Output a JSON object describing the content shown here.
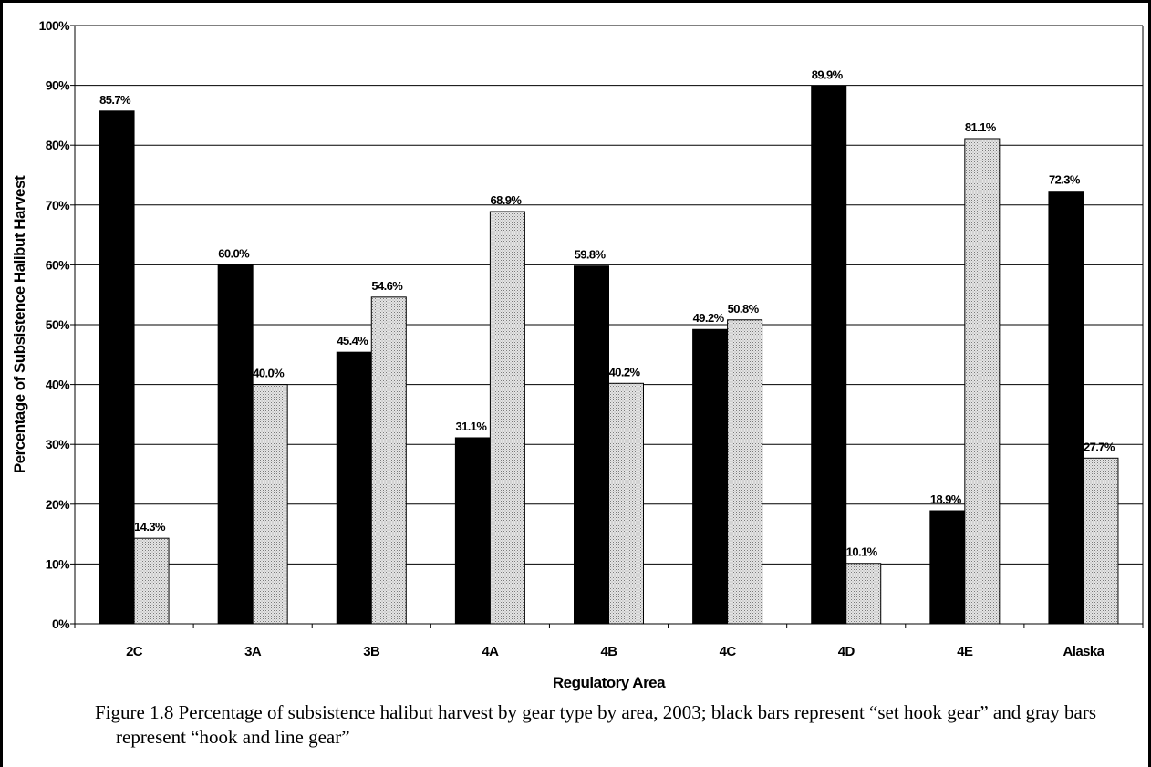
{
  "caption": "Figure 1.8 Percentage of subsistence halibut harvest by gear type by area, 2003; black bars represent “set hook gear” and gray bars represent “hook and line gear”",
  "chart_data": {
    "type": "bar",
    "title": "",
    "xlabel": "Regulatory Area",
    "ylabel": "Percentage of Subsistence Halibut Harvest",
    "ylim": [
      0,
      100
    ],
    "yticks": [
      "0%",
      "10%",
      "20%",
      "30%",
      "40%",
      "50%",
      "60%",
      "70%",
      "80%",
      "90%",
      "100%"
    ],
    "grid": "horizontal",
    "legend": "none",
    "categories": [
      "2C",
      "3A",
      "3B",
      "4A",
      "4B",
      "4C",
      "4D",
      "4E",
      "Alaska"
    ],
    "series": [
      {
        "color": "#000000",
        "values": [
          85.7,
          60.0,
          45.4,
          31.1,
          59.8,
          49.2,
          89.9,
          18.9,
          72.3
        ],
        "labels": [
          "85.7%",
          "60.0%",
          "45.4%",
          "31.1%",
          "59.8%",
          "49.2%",
          "89.9%",
          "18.9%",
          "72.3%"
        ]
      },
      {
        "color": "#c8c8c8",
        "values": [
          14.3,
          40.0,
          54.6,
          68.9,
          40.2,
          50.8,
          10.1,
          81.1,
          27.7
        ],
        "labels": [
          "14.3%",
          "40.0%",
          "54.6%",
          "68.9%",
          "40.2%",
          "50.8%",
          "10.1%",
          "81.1%",
          "27.7%"
        ]
      }
    ]
  }
}
